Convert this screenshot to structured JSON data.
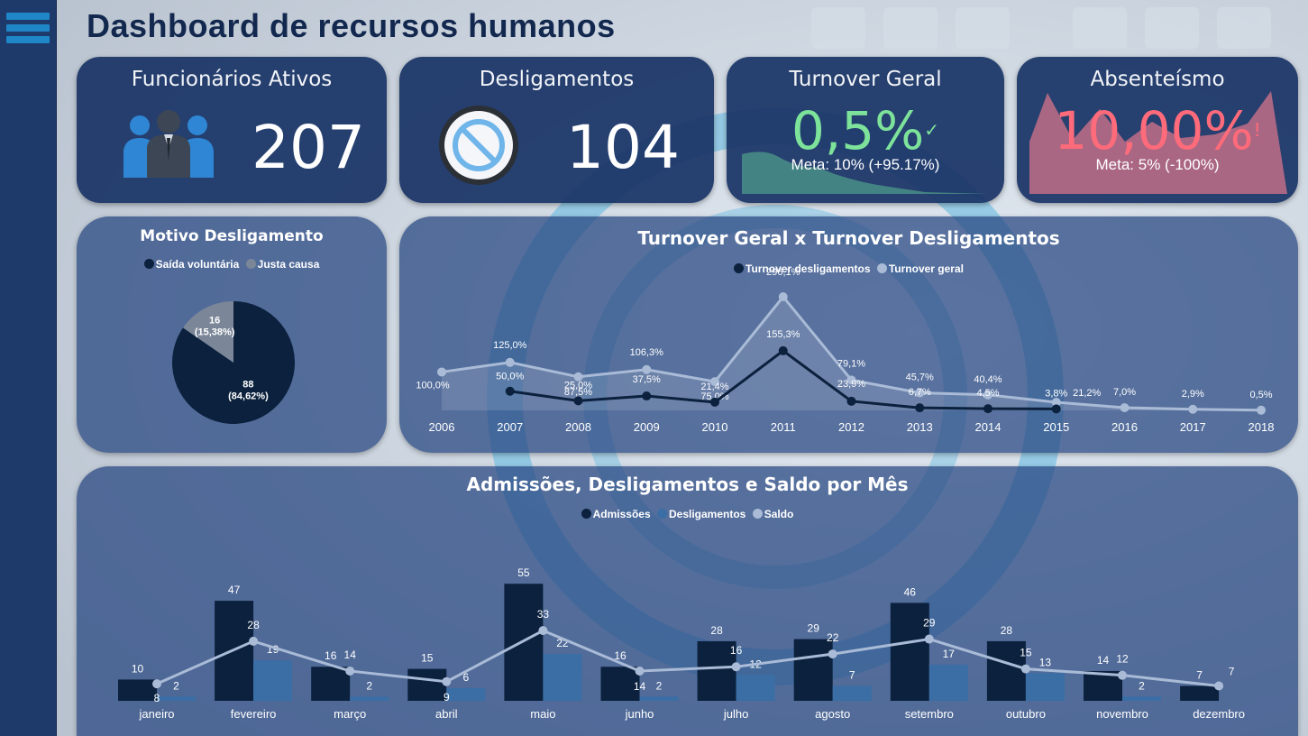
{
  "header": {
    "title": "Dashboard de recursos humanos"
  },
  "sidebar": {
    "icon": "hamburger-menu-icon"
  },
  "kpis": {
    "active": {
      "title": "Funcionários Ativos",
      "value": "207",
      "icon": "people-group-icon"
    },
    "dismissals": {
      "title": "Desligamentos",
      "value": "104",
      "icon": "prohibited-icon"
    },
    "turnover": {
      "title": "Turnover Geral",
      "value": "0,5%",
      "status": "✓",
      "goal": "Meta: 10% (+95.17%)",
      "color": "#7ee39a"
    },
    "absenteeism": {
      "title": "Absenteísmo",
      "value": "10,00%",
      "status": "!",
      "goal": "Meta: 5% (-100%)",
      "color": "#ff6b7a"
    }
  },
  "pie": {
    "title": "Motivo Desligamento",
    "chart_data": {
      "type": "pie",
      "series": [
        {
          "name": "Saída voluntária",
          "value": 88,
          "label": "88\n(84,62%)",
          "color": "#0b213d"
        },
        {
          "name": "Justa causa",
          "value": 16,
          "label": "16\n(15,38%)",
          "color": "#7b8798"
        }
      ],
      "legend": "top"
    }
  },
  "line": {
    "title": "Turnover Geral x Turnover Desligamentos",
    "chart_data": {
      "type": "line",
      "categories": [
        "2006",
        "2007",
        "2008",
        "2009",
        "2010",
        "2011",
        "2012",
        "2013",
        "2014",
        "2015",
        "2016",
        "2017",
        "2018"
      ],
      "series": [
        {
          "name": "Turnover desligamentos",
          "color": "#0b213d",
          "values": [
            null,
            50.0,
            25.0,
            37.5,
            21.4,
            155.3,
            23.9,
            6.7,
            4.5,
            3.8,
            null,
            null,
            null
          ],
          "labels": [
            "",
            "50,0%",
            "25,0%",
            "37,5%",
            "21,4%",
            "155,3%",
            "23,9%",
            "6,7%",
            "4,5%",
            "3,8%",
            "",
            "",
            ""
          ]
        },
        {
          "name": "Turnover geral",
          "color": "#a9bbd6",
          "values": [
            100.0,
            125.0,
            87.5,
            106.3,
            75.0,
            296.1,
            79.1,
            45.7,
            40.4,
            21.2,
            7.0,
            2.9,
            0.5
          ],
          "labels": [
            "100,0%",
            "125,0%",
            "87,5%",
            "106,3%",
            "75,0%",
            "296,1%",
            "79,1%",
            "45,7%",
            "40,4%",
            "21,2%",
            "7,0%",
            "2,9%",
            "0,5%"
          ]
        }
      ],
      "legend": "top"
    }
  },
  "combo": {
    "title": "Admissões, Desligamentos e Saldo por Mês",
    "chart_data": {
      "type": "bar",
      "categories": [
        "janeiro",
        "fevereiro",
        "março",
        "abril",
        "maio",
        "junho",
        "julho",
        "agosto",
        "setembro",
        "outubro",
        "novembro",
        "dezembro"
      ],
      "series": [
        {
          "name": "Admissões",
          "color": "#0b213d",
          "values": [
            10,
            47,
            16,
            15,
            55,
            16,
            28,
            29,
            46,
            28,
            14,
            7
          ]
        },
        {
          "name": "Desligamentos",
          "color": "#3a6ea5",
          "values": [
            2,
            19,
            2,
            6,
            22,
            2,
            12,
            7,
            17,
            13,
            2,
            0
          ]
        },
        {
          "name": "Saldo",
          "type": "line",
          "color": "#a9bbd6",
          "values": [
            8,
            28,
            14,
            9,
            33,
            14,
            16,
            22,
            29,
            15,
            12,
            7
          ]
        }
      ],
      "legend": "top"
    }
  }
}
